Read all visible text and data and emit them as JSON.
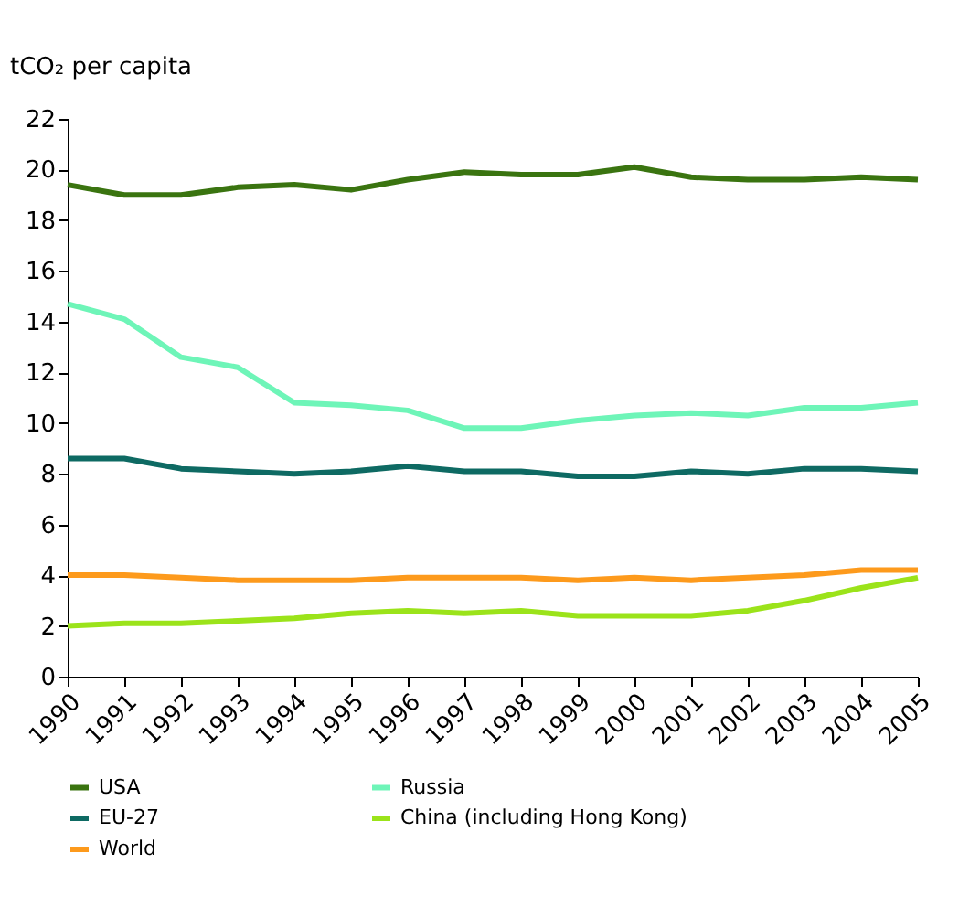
{
  "chart_data": {
    "type": "line",
    "ylabel": "tCO₂ per capita",
    "categories": [
      "1990",
      "1991",
      "1992",
      "1993",
      "1994",
      "1995",
      "1996",
      "1997",
      "1998",
      "1999",
      "2000",
      "2001",
      "2002",
      "2003",
      "2004",
      "2005"
    ],
    "series": [
      {
        "name": "USA",
        "color": "#3a7410",
        "values": [
          19.4,
          19.0,
          19.0,
          19.3,
          19.4,
          19.2,
          19.6,
          19.9,
          19.8,
          19.8,
          20.1,
          19.7,
          19.6,
          19.6,
          19.7,
          19.6
        ]
      },
      {
        "name": "Russia",
        "color": "#6ef5b8",
        "values": [
          14.7,
          14.1,
          12.6,
          12.2,
          10.8,
          10.7,
          10.5,
          9.8,
          9.8,
          10.1,
          10.3,
          10.4,
          10.3,
          10.6,
          10.6,
          10.8
        ]
      },
      {
        "name": "EU-27",
        "color": "#0e6a63",
        "values": [
          8.6,
          8.6,
          8.2,
          8.1,
          8.0,
          8.1,
          8.3,
          8.1,
          8.1,
          7.9,
          7.9,
          8.1,
          8.0,
          8.2,
          8.2,
          8.1
        ]
      },
      {
        "name": "China (including Hong Kong)",
        "color": "#9be31a",
        "values": [
          2.0,
          2.1,
          2.1,
          2.2,
          2.3,
          2.5,
          2.6,
          2.5,
          2.6,
          2.4,
          2.4,
          2.4,
          2.6,
          3.0,
          3.5,
          3.9
        ]
      },
      {
        "name": "World",
        "color": "#fd9a1c",
        "values": [
          4.0,
          4.0,
          3.9,
          3.8,
          3.8,
          3.8,
          3.9,
          3.9,
          3.9,
          3.8,
          3.9,
          3.8,
          3.9,
          4.0,
          4.2,
          4.2
        ]
      }
    ],
    "ylim": [
      0,
      22
    ],
    "yticks": [
      0,
      2,
      4,
      6,
      8,
      10,
      12,
      14,
      16,
      18,
      20,
      22
    ],
    "grid": false,
    "legend": "bottom",
    "marker": "none",
    "line_style": "solid"
  }
}
